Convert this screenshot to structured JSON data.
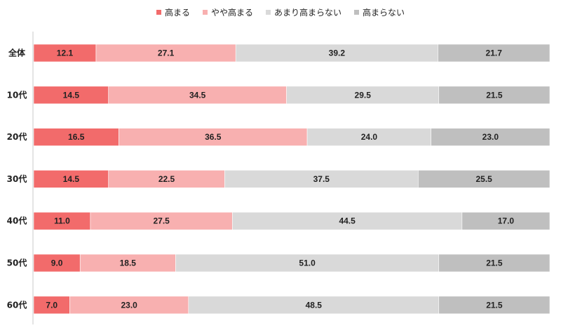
{
  "chart_data": {
    "type": "bar",
    "orientation": "horizontal",
    "stacked": true,
    "percent_stacked": true,
    "categories": [
      "全体",
      "10代",
      "20代",
      "30代",
      "40代",
      "50代",
      "60代"
    ],
    "series": [
      {
        "name": "高まる",
        "color": "#f26b6b",
        "values": [
          12.1,
          14.5,
          16.5,
          14.5,
          11.0,
          9.0,
          7.0
        ]
      },
      {
        "name": "やや高まる",
        "color": "#f8b0b0",
        "values": [
          27.1,
          34.5,
          36.5,
          22.5,
          27.5,
          18.5,
          23.0
        ]
      },
      {
        "name": "あまり高まらない",
        "color": "#d9d9d9",
        "values": [
          39.2,
          29.5,
          24.0,
          37.5,
          44.5,
          51.0,
          48.5
        ]
      },
      {
        "name": "高まらない",
        "color": "#bfbfbf",
        "values": [
          21.7,
          21.5,
          23.0,
          25.5,
          17.0,
          21.5,
          21.5
        ]
      }
    ],
    "value_labels": [
      [
        "12.1",
        "27.1",
        "39.2",
        "21.7"
      ],
      [
        "14.5",
        "34.5",
        "29.5",
        "21.5"
      ],
      [
        "16.5",
        "36.5",
        "24.0",
        "23.0"
      ],
      [
        "14.5",
        "22.5",
        "37.5",
        "25.5"
      ],
      [
        "11.0",
        "27.5",
        "44.5",
        "17.0"
      ],
      [
        "9.0",
        "18.5",
        "51.0",
        "21.5"
      ],
      [
        "7.0",
        "23.0",
        "48.5",
        "21.5"
      ]
    ],
    "legend_position": "top",
    "title": "",
    "xlabel": "",
    "ylabel": "",
    "grid": false
  }
}
